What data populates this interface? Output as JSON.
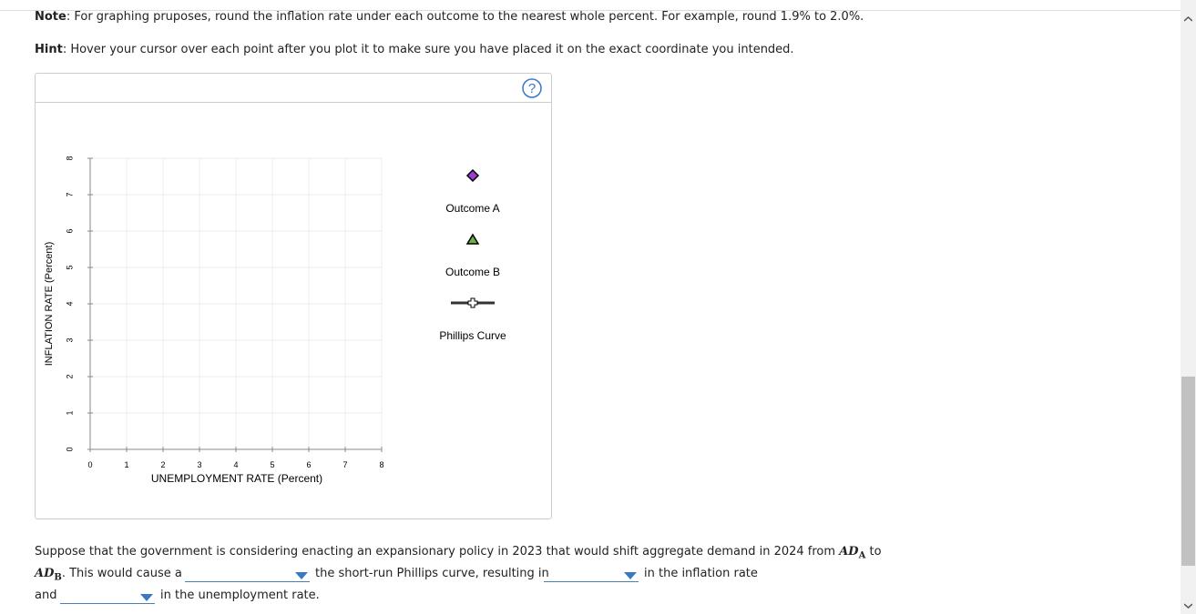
{
  "note": {
    "label": "Note",
    "text": ": For graphing pruposes, round the inflation rate under each outcome to the nearest whole percent. For example, round 1.9% to 2.0%."
  },
  "hint": {
    "label": "Hint",
    "text": ": Hover your cursor over each point after you plot it to make sure you have placed it on the exact coordinate you intended."
  },
  "graph": {
    "help_icon": "?",
    "x_label": "UNEMPLOYMENT RATE (Percent)",
    "y_label": "INFLATION RATE (Percent)",
    "xlim": [
      0,
      8
    ],
    "ylim": [
      0,
      8
    ],
    "xticks": [
      0,
      1,
      2,
      3,
      4,
      5,
      6,
      7,
      8
    ],
    "yticks": [
      0,
      1,
      2,
      3,
      4,
      5,
      6,
      7,
      8
    ],
    "grid": true,
    "tools": [
      {
        "name": "Outcome A",
        "marker": "diamond",
        "color": "#9b3fcf"
      },
      {
        "name": "Outcome B",
        "marker": "triangle",
        "color": "#6ab04c"
      },
      {
        "name": "Phillips Curve",
        "marker": "line",
        "color": "#333333"
      }
    ]
  },
  "question": {
    "intro": "Suppose that the government is considering enacting an expansionary policy in 2023 that would shift aggregate demand in 2024 from",
    "ad_a": {
      "base": "AD",
      "sub": "A"
    },
    "to": "to",
    "ad_b": {
      "base": "AD",
      "sub": "B"
    },
    "cause": ". This would cause a",
    "curve": "the short-run Phillips curve, resulting in",
    "inflation": "in the inflation rate",
    "and": "and",
    "unemployment": "in the unemployment rate."
  }
}
